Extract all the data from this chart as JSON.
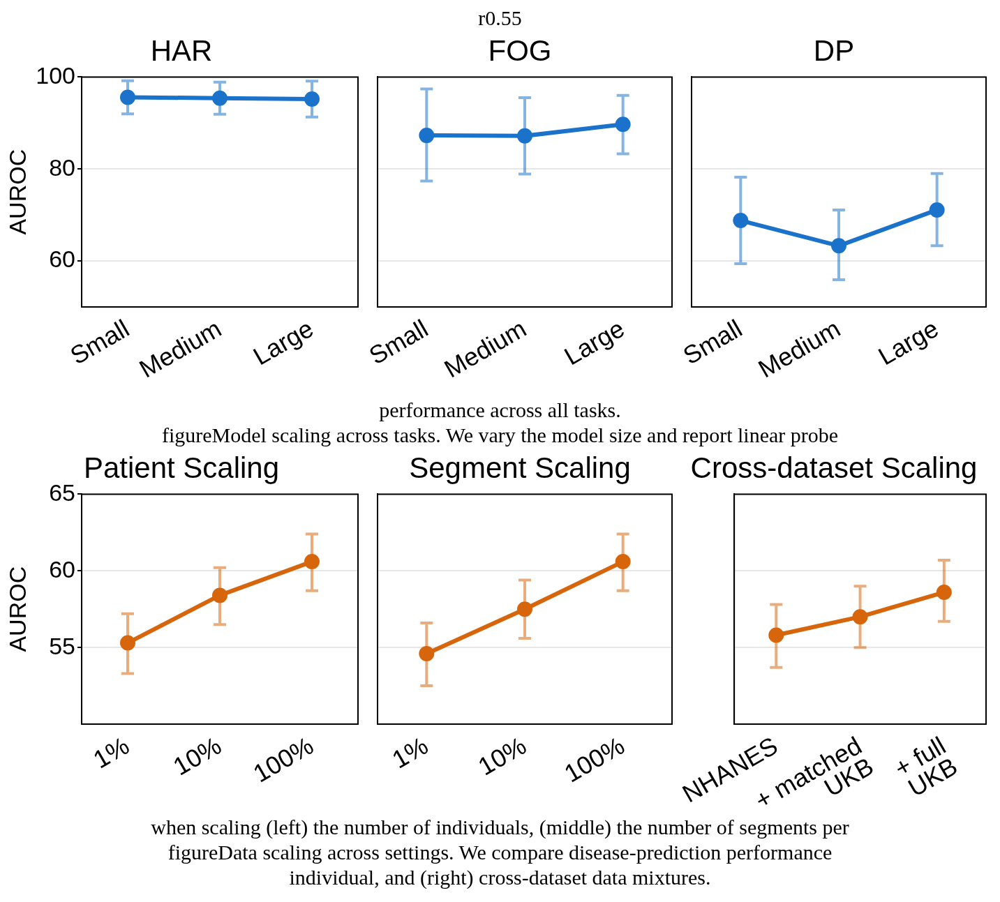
{
  "chart_data": [
    {
      "type": "line",
      "title": "HAR",
      "ylabel": "AUROC",
      "categories": [
        "Small",
        "Medium",
        "Large"
      ],
      "series": [
        {
          "color": "#1b72cb",
          "values": [
            95.6,
            95.4,
            95.2
          ],
          "errors": [
            [
              92.0,
              99.2
            ],
            [
              91.9,
              98.9
            ],
            [
              91.3,
              99.1
            ]
          ]
        }
      ],
      "ylim": [
        50,
        100
      ],
      "yticks": [
        60,
        80,
        100
      ],
      "grid": "y",
      "marker": "circle",
      "annotations": [
        "r0.55"
      ]
    },
    {
      "type": "line",
      "title": "FOG",
      "categories": [
        "Small",
        "Medium",
        "Large"
      ],
      "series": [
        {
          "color": "#1b72cb",
          "values": [
            87.3,
            87.2,
            89.7
          ],
          "errors": [
            [
              77.4,
              97.4
            ],
            [
              78.9,
              95.5
            ],
            [
              83.3,
              96.0
            ]
          ]
        }
      ],
      "ylim": [
        50,
        100
      ],
      "yticks": [
        60,
        80,
        100
      ],
      "grid": "y",
      "marker": "circle",
      "tick_labels": "x"
    },
    {
      "type": "line",
      "title": "DP",
      "categories": [
        "Small",
        "Medium",
        "Large"
      ],
      "series": [
        {
          "color": "#1b72cb",
          "values": [
            68.8,
            63.3,
            71.1
          ],
          "errors": [
            [
              59.4,
              78.2
            ],
            [
              55.9,
              71.1
            ],
            [
              63.3,
              79.0
            ]
          ]
        }
      ],
      "ylim": [
        50,
        100
      ],
      "yticks": [
        60,
        80,
        100
      ],
      "grid": "y",
      "marker": "circle",
      "tick_labels": "x",
      "annotations": [
        "performance across all tasks.",
        "figureModel scaling across tasks. We vary the model size and report linear probe"
      ]
    },
    {
      "type": "line",
      "title": "Patient Scaling",
      "ylabel": "AUROC",
      "categories": [
        "1%",
        "10%",
        "100%"
      ],
      "series": [
        {
          "color": "#d6650b",
          "values": [
            55.3,
            58.4,
            60.6
          ],
          "errors": [
            [
              53.3,
              57.2
            ],
            [
              56.5,
              60.2
            ],
            [
              58.7,
              62.4
            ]
          ]
        }
      ],
      "ylim": [
        50,
        65
      ],
      "yticks": [
        55,
        60,
        65
      ],
      "grid": "y",
      "marker": "circle"
    },
    {
      "type": "line",
      "title": "Segment Scaling",
      "categories": [
        "1%",
        "10%",
        "100%"
      ],
      "series": [
        {
          "color": "#d6650b",
          "values": [
            54.6,
            57.5,
            60.6
          ],
          "errors": [
            [
              52.5,
              56.6
            ],
            [
              55.6,
              59.4
            ],
            [
              58.7,
              62.4
            ]
          ]
        }
      ],
      "ylim": [
        50,
        65
      ],
      "yticks": [
        55,
        60,
        65
      ],
      "grid": "y",
      "marker": "circle",
      "tick_labels": "x"
    },
    {
      "type": "line",
      "title": "Cross-dataset Scaling",
      "categories": [
        "NHANES",
        "+ matched\nUKB",
        "+ full\nUKB"
      ],
      "series": [
        {
          "color": "#d6650b",
          "values": [
            55.8,
            57.0,
            58.6
          ],
          "errors": [
            [
              53.7,
              57.8
            ],
            [
              55.0,
              59.0
            ],
            [
              56.7,
              60.7
            ]
          ]
        }
      ],
      "ylim": [
        50,
        65
      ],
      "yticks": [
        55,
        60,
        65
      ],
      "grid": "y",
      "marker": "circle",
      "tick_labels": "x",
      "annotations": [
        "when scaling (left) the number of individuals, (middle) the number of segments per",
        "figureData scaling across settings. We compare disease-prediction performance",
        "individual, and (right) cross-dataset data mixtures."
      ]
    }
  ]
}
